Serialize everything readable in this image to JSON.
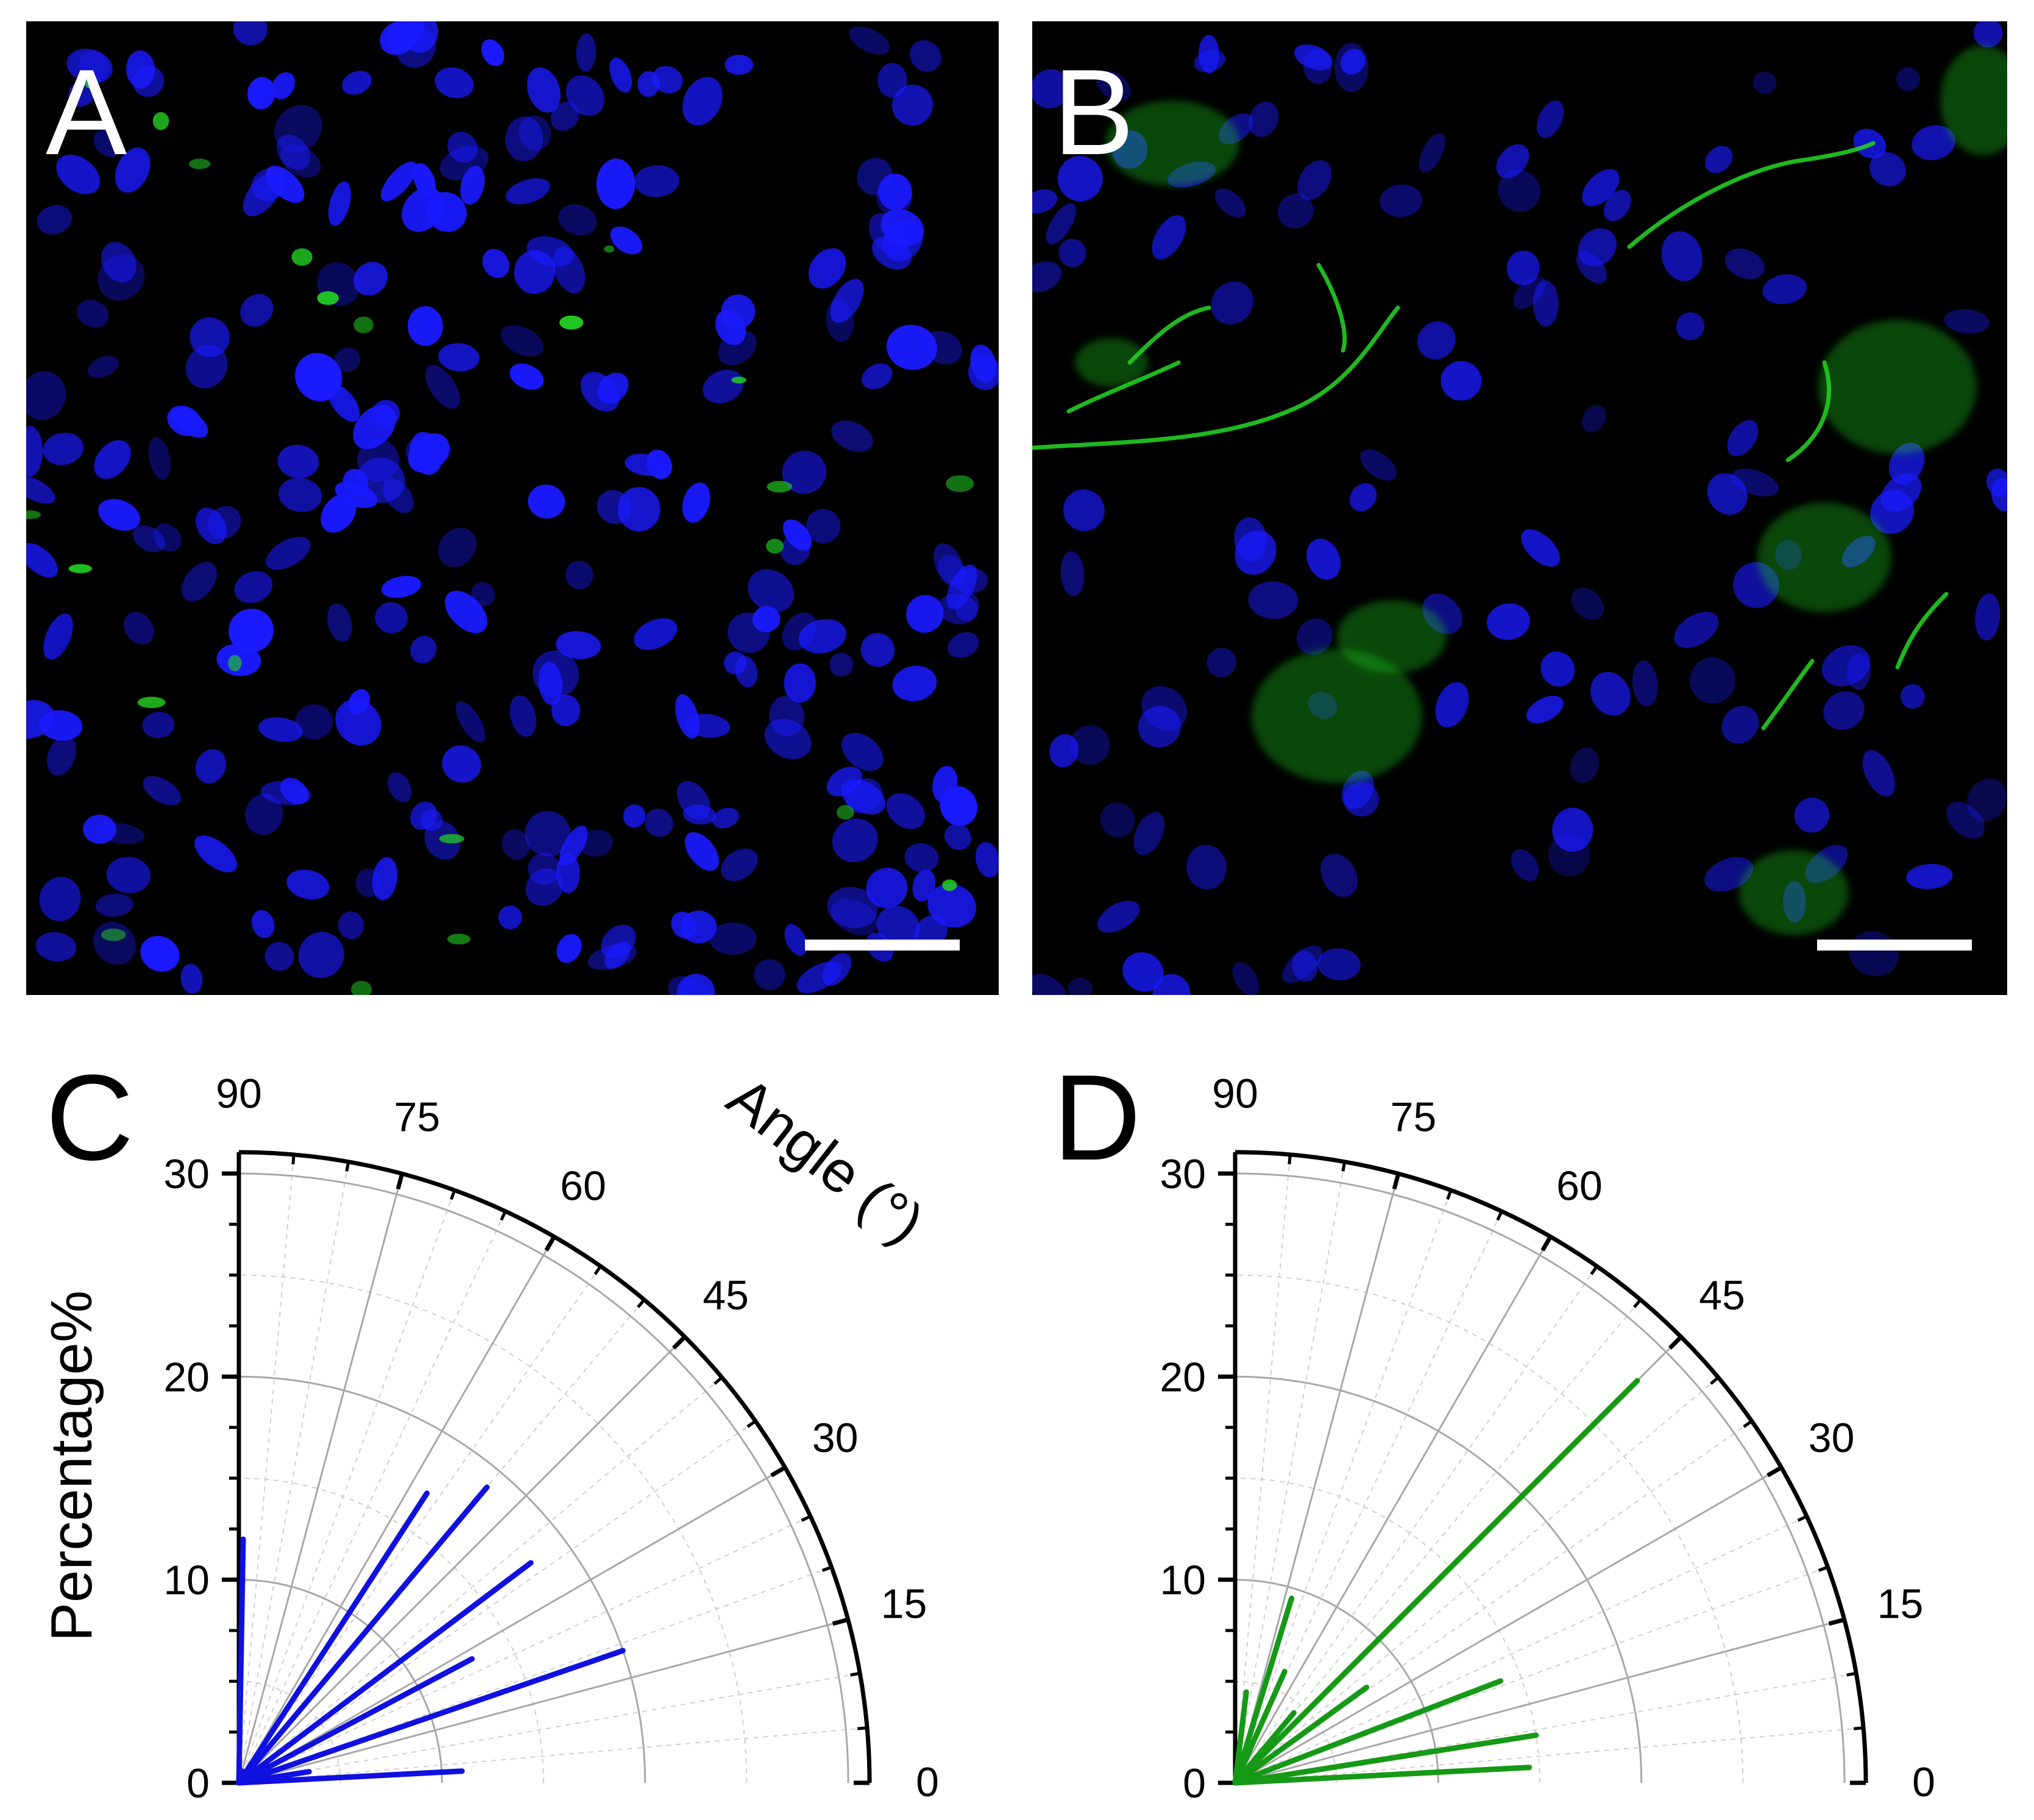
{
  "panels": {
    "A": {
      "label": "A"
    },
    "B": {
      "label": "B"
    },
    "C": {
      "label": "C"
    },
    "D": {
      "label": "D"
    }
  },
  "colors": {
    "nuclei": "#1a1aff",
    "marker": "#22cc22",
    "series_C": "#1010e0",
    "series_D": "#169916"
  },
  "chart_data": [
    {
      "panel": "C",
      "type": "polar-bar",
      "angle_axis_label": "Angle (°)",
      "radial_axis_label": "Percentage%",
      "angle_ticks": [
        "90",
        "75",
        "60",
        "45",
        "30",
        "15",
        "0"
      ],
      "radial_ticks": [
        "30",
        "20",
        "10",
        "0"
      ],
      "angle_range": [
        0,
        90
      ],
      "radial_range": [
        0,
        30
      ],
      "series": [
        {
          "values": [
            {
              "angle": 3,
              "value": 11
            },
            {
              "angle": 9,
              "value": 3.5
            },
            {
              "angle": 19,
              "value": 20
            },
            {
              "angle": 28,
              "value": 13
            },
            {
              "angle": 37,
              "value": 18
            },
            {
              "angle": 50,
              "value": 19
            },
            {
              "angle": 57,
              "value": 17
            },
            {
              "angle": 71,
              "value": 0.6
            },
            {
              "angle": 89,
              "value": 12
            }
          ]
        }
      ]
    },
    {
      "panel": "D",
      "type": "polar-bar",
      "angle_axis_label": "",
      "radial_axis_label": "",
      "angle_ticks": [
        "90",
        "75",
        "60",
        "45",
        "30",
        "15",
        "0"
      ],
      "radial_ticks": [
        "30",
        "20",
        "10",
        "0"
      ],
      "angle_range": [
        0,
        90
      ],
      "radial_range": [
        0,
        30
      ],
      "series": [
        {
          "values": [
            {
              "angle": 3,
              "value": 14.5
            },
            {
              "angle": 9,
              "value": 15
            },
            {
              "angle": 21,
              "value": 14
            },
            {
              "angle": 36,
              "value": 8
            },
            {
              "angle": 45,
              "value": 28
            },
            {
              "angle": 50,
              "value": 4.5
            },
            {
              "angle": 66,
              "value": 6
            },
            {
              "angle": 73,
              "value": 9.5
            },
            {
              "angle": 83,
              "value": 4.5
            }
          ]
        }
      ]
    }
  ]
}
